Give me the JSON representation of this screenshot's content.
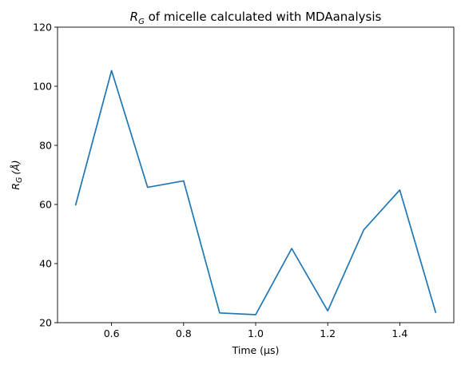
{
  "chart_data": {
    "type": "line",
    "title": {
      "symbol": "R",
      "subscript": "G",
      "text": " of micelle calculated with MDAanalysis"
    },
    "xlabel": "Time (µs)",
    "ylabel": {
      "symbol": "R",
      "subscript": "G",
      "unit": "(Å)"
    },
    "xlim": [
      0.45,
      1.55
    ],
    "ylim": [
      20,
      120
    ],
    "xticks": [
      "0.6",
      "0.8",
      "1.0",
      "1.2",
      "1.4"
    ],
    "yticks": [
      "20",
      "40",
      "60",
      "80",
      "100",
      "120"
    ],
    "grid": false,
    "series": [
      {
        "color": "#1f77b4",
        "x": [
          0.5,
          0.6,
          0.7,
          0.8,
          0.9,
          1.0,
          1.1,
          1.2,
          1.3,
          1.4,
          1.5
        ],
        "y": [
          59.7,
          105.3,
          65.8,
          68.0,
          23.3,
          22.7,
          45.1,
          24.0,
          51.4,
          64.9,
          23.3
        ]
      }
    ]
  }
}
